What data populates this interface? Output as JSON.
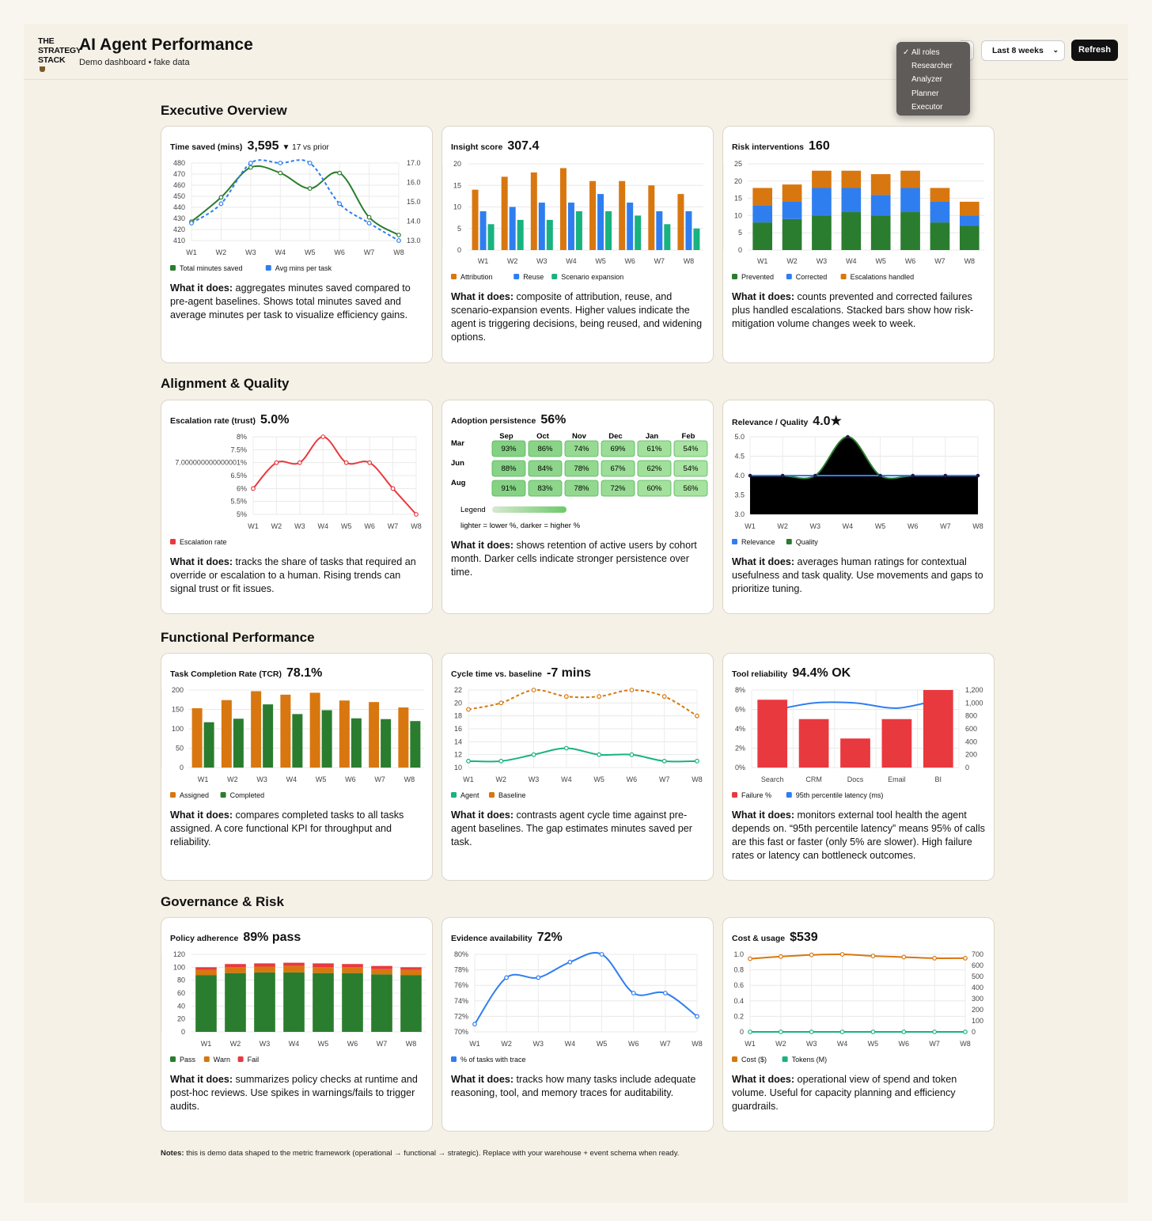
{
  "header": {
    "logo_lines": [
      "THE",
      "STRATEGY",
      "STACK"
    ],
    "title": "AI Agent Performance",
    "subtitle": "Demo dashboard • fake data"
  },
  "controls": {
    "roles": [
      "All roles",
      "Researcher",
      "Analyzer",
      "Planner",
      "Executor"
    ],
    "selected_role": "All roles",
    "period": "Last 8 weeks",
    "refresh": "Refresh"
  },
  "sections": {
    "exec": "Executive Overview",
    "align": "Alignment & Quality",
    "func": "Functional Performance",
    "gov": "Governance & Risk"
  },
  "weeks": [
    "W1",
    "W2",
    "W3",
    "W4",
    "W5",
    "W6",
    "W7",
    "W8"
  ],
  "colors": {
    "green": "#2a7d2e",
    "blue": "#2f7ef0",
    "orange": "#d8770f",
    "teal": "#18b37e",
    "red": "#e8393f",
    "yellow_orange": "#e07a10"
  },
  "cards": {
    "time_saved": {
      "label": "Time saved (mins)",
      "value": "3,595",
      "delta": "▼ 17 vs prior",
      "desc_bold": "What it does:",
      "desc": " aggregates minutes saved compared to pre-agent baselines. Shows total minutes saved and average minutes per task to visualize efficiency gains."
    },
    "insight": {
      "label": "Insight score",
      "value": "307.4",
      "desc_bold": "What it does:",
      "desc": " composite of attribution, reuse, and scenario-expansion events. Higher values indicate the agent is triggering decisions, being reused, and widening options."
    },
    "risk": {
      "label": "Risk interventions",
      "value": "160",
      "desc_bold": "What it does:",
      "desc": " counts prevented and corrected failures plus handled escalations. Stacked bars show how risk-mitigation volume changes week to week."
    },
    "escalation": {
      "label": "Escalation rate (trust)",
      "value": "5.0%",
      "desc_bold": "What it does:",
      "desc": " tracks the share of tasks that required an override or escalation to a human. Rising trends can signal trust or fit issues."
    },
    "adoption": {
      "label": "Adoption persistence",
      "value": "56%",
      "desc_bold": "What it does:",
      "desc": " shows retention of active users by cohort month. Darker cells indicate stronger persistence over time."
    },
    "relevance": {
      "label": "Relevance / Quality",
      "value": "4.0★",
      "desc_bold": "What it does:",
      "desc": " averages human ratings for contextual usefulness and task quality. Use movements and gaps to prioritize tuning."
    },
    "tcr": {
      "label": "Task Completion Rate (TCR)",
      "value": "78.1%",
      "desc_bold": "What it does:",
      "desc": " compares completed tasks to all tasks assigned. A core functional KPI for throughput and reliability."
    },
    "cycle": {
      "label": "Cycle time vs. baseline",
      "value": "-7 mins",
      "desc_bold": "What it does:",
      "desc": " contrasts agent cycle time against pre-agent baselines. The gap estimates minutes saved per task."
    },
    "tool": {
      "label": "Tool reliability",
      "value": "94.4% OK",
      "desc_bold": "What it does:",
      "desc": " monitors external tool health the agent depends on. “95th percentile latency” means 95% of calls are this fast or faster (only 5% are slower). High failure rates or latency can bottleneck outcomes."
    },
    "policy": {
      "label": "Policy adherence",
      "value": "89% pass",
      "desc_bold": "What it does:",
      "desc": " summarizes policy checks at runtime and post-hoc reviews. Use spikes in warnings/fails to trigger audits."
    },
    "evidence": {
      "label": "Evidence availability",
      "value": "72%",
      "desc_bold": "What it does:",
      "desc": " tracks how many tasks include adequate reasoning, tool, and memory traces for auditability."
    },
    "cost": {
      "label": "Cost & usage",
      "value": "$539",
      "desc_bold": "What it does:",
      "desc": " operational view of spend and token volume. Useful for capacity planning and efficiency guardrails."
    }
  },
  "chart_data": [
    {
      "id": "time_saved",
      "type": "line",
      "x": [
        "W1",
        "W2",
        "W3",
        "W4",
        "W5",
        "W6",
        "W7",
        "W8"
      ],
      "series": [
        {
          "name": "Total minutes saved",
          "axis": "left",
          "values": [
            427,
            449,
            476,
            471,
            457,
            471,
            431,
            415
          ]
        },
        {
          "name": "Avg mins per task",
          "axis": "right",
          "values": [
            13.9,
            14.9,
            17.0,
            17.0,
            17.0,
            14.9,
            13.9,
            13.0
          ]
        }
      ],
      "ylim_left": [
        410,
        480
      ],
      "yticks_left": [
        "410",
        "420",
        "430",
        "440",
        "450",
        "460",
        "470",
        "480"
      ],
      "ylim_right": [
        13,
        17
      ],
      "yticks_right": [
        "13.0",
        "14.0",
        "15.0",
        "16.0",
        "17.0"
      ]
    },
    {
      "id": "insight",
      "type": "bar",
      "x": [
        "W1",
        "W2",
        "W3",
        "W4",
        "W5",
        "W6",
        "W7",
        "W8"
      ],
      "series": [
        {
          "name": "Attribution",
          "values": [
            14,
            17,
            18,
            19,
            16,
            16,
            15,
            13
          ]
        },
        {
          "name": "Reuse",
          "values": [
            9,
            10,
            11,
            11,
            13,
            11,
            9,
            9
          ]
        },
        {
          "name": "Scenario expansion",
          "values": [
            6,
            7,
            7,
            9,
            9,
            8,
            6,
            5
          ]
        }
      ],
      "ylim": [
        0,
        20
      ],
      "yticks": [
        "0",
        "5",
        "10",
        "15",
        "20"
      ]
    },
    {
      "id": "risk",
      "type": "stacked-bar",
      "x": [
        "W1",
        "W2",
        "W3",
        "W4",
        "W5",
        "W6",
        "W7",
        "W8"
      ],
      "series": [
        {
          "name": "Prevented",
          "values": [
            8,
            9,
            10,
            11,
            10,
            11,
            8,
            7
          ]
        },
        {
          "name": "Corrected",
          "values": [
            5,
            5,
            8,
            7,
            6,
            7,
            6,
            3
          ]
        },
        {
          "name": "Escalations handled",
          "values": [
            5,
            5,
            5,
            5,
            6,
            5,
            4,
            4
          ]
        }
      ],
      "ylim": [
        0,
        25
      ],
      "yticks": [
        "0",
        "5",
        "10",
        "15",
        "20",
        "25"
      ]
    },
    {
      "id": "escalation",
      "type": "line",
      "x": [
        "W1",
        "W2",
        "W3",
        "W4",
        "W5",
        "W6",
        "W7",
        "W8"
      ],
      "series": [
        {
          "name": "Escalation rate",
          "values": [
            6,
            7,
            7,
            8,
            7,
            7,
            6,
            5
          ]
        }
      ],
      "ylim": [
        5,
        8
      ],
      "yticks": [
        "5%",
        "5.5%",
        "6%",
        "6.5%",
        "7.000000000000001%",
        "7.5%",
        "8%"
      ]
    },
    {
      "id": "adoption",
      "type": "heatmap",
      "columns": [
        "Sep",
        "Oct",
        "Nov",
        "Dec",
        "Jan",
        "Feb"
      ],
      "rows": [
        "Mar",
        "Jun",
        "Aug"
      ],
      "values": [
        [
          "93%",
          "86%",
          "74%",
          "69%",
          "61%",
          "54%"
        ],
        [
          "88%",
          "84%",
          "78%",
          "67%",
          "62%",
          "54%"
        ],
        [
          "91%",
          "83%",
          "78%",
          "72%",
          "60%",
          "56%"
        ]
      ],
      "legend_title": "Legend",
      "legend_note": "lighter = lower %, darker = higher %"
    },
    {
      "id": "relevance",
      "type": "area",
      "x": [
        "W1",
        "W2",
        "W3",
        "W4",
        "W5",
        "W6",
        "W7",
        "W8"
      ],
      "series": [
        {
          "name": "Relevance",
          "values": [
            4.0,
            4.0,
            4.0,
            4.0,
            4.0,
            4.0,
            4.0,
            4.0
          ]
        },
        {
          "name": "Quality",
          "values": [
            4.0,
            4.0,
            4.0,
            5.0,
            4.0,
            4.0,
            4.0,
            4.0
          ]
        }
      ],
      "ylim": [
        3,
        5
      ],
      "yticks": [
        "3.0",
        "3.5",
        "4.0",
        "4.5",
        "5.0"
      ]
    },
    {
      "id": "tcr",
      "type": "bar",
      "x": [
        "W1",
        "W2",
        "W3",
        "W4",
        "W5",
        "W6",
        "W7",
        "W8"
      ],
      "series": [
        {
          "name": "Assigned",
          "values": [
            153,
            174,
            197,
            188,
            193,
            173,
            169,
            155
          ]
        },
        {
          "name": "Completed",
          "values": [
            117,
            126,
            163,
            138,
            148,
            127,
            125,
            120
          ]
        }
      ],
      "ylim": [
        0,
        200
      ],
      "yticks": [
        "0",
        "50",
        "100",
        "150",
        "200"
      ]
    },
    {
      "id": "cycle",
      "type": "line",
      "x": [
        "W1",
        "W2",
        "W3",
        "W4",
        "W5",
        "W6",
        "W7",
        "W8"
      ],
      "series": [
        {
          "name": "Agent",
          "values": [
            11,
            11,
            12,
            13,
            12,
            12,
            11,
            11
          ]
        },
        {
          "name": "Baseline",
          "values": [
            19,
            20,
            22,
            21,
            21,
            22,
            21,
            18
          ]
        }
      ],
      "ylim": [
        10,
        22
      ],
      "yticks": [
        "10",
        "12",
        "14",
        "16",
        "18",
        "20",
        "22"
      ]
    },
    {
      "id": "tool",
      "type": "bar+line",
      "x": [
        "Search",
        "CRM",
        "Docs",
        "Email",
        "BI"
      ],
      "series": [
        {
          "name": "Failure %",
          "axis": "left",
          "values": [
            7,
            5,
            3,
            5,
            8
          ]
        },
        {
          "name": "95th percentile latency (ms)",
          "axis": "right",
          "values": [
            880,
            1000,
            1000,
            920,
            1050
          ]
        }
      ],
      "ylim_left": [
        0,
        8
      ],
      "yticks_left": [
        "0%",
        "2%",
        "4%",
        "6%",
        "8%"
      ],
      "ylim_right": [
        0,
        1200
      ],
      "yticks_right": [
        "0",
        "200",
        "400",
        "600",
        "800",
        "1,000",
        "1,200"
      ]
    },
    {
      "id": "policy",
      "type": "stacked-bar",
      "x": [
        "W1",
        "W2",
        "W3",
        "W4",
        "W5",
        "W6",
        "W7",
        "W8"
      ],
      "series": [
        {
          "name": "Pass",
          "values": [
            88,
            91,
            92,
            92,
            91,
            91,
            89,
            88
          ]
        },
        {
          "name": "Warn",
          "values": [
            8,
            9,
            9,
            10,
            9,
            9,
            8,
            8
          ]
        },
        {
          "name": "Fail",
          "values": [
            4,
            5,
            5,
            5,
            6,
            5,
            5,
            4
          ]
        }
      ],
      "ylim": [
        0,
        120
      ],
      "yticks": [
        "0",
        "20",
        "40",
        "60",
        "80",
        "100",
        "120"
      ]
    },
    {
      "id": "evidence",
      "type": "line",
      "x": [
        "W1",
        "W2",
        "W3",
        "W4",
        "W5",
        "W6",
        "W7",
        "W8"
      ],
      "series": [
        {
          "name": "% of tasks with trace",
          "values": [
            71,
            77,
            77,
            79,
            80,
            75,
            75,
            72
          ]
        }
      ],
      "ylim": [
        70,
        80
      ],
      "yticks": [
        "70%",
        "72%",
        "74%",
        "76%",
        "78%",
        "80%"
      ]
    },
    {
      "id": "cost",
      "type": "line",
      "x": [
        "W1",
        "W2",
        "W3",
        "W4",
        "W5",
        "W6",
        "W7",
        "W8"
      ],
      "series": [
        {
          "name": "Cost ($)",
          "axis": "right",
          "values": [
            660,
            680,
            695,
            700,
            685,
            675,
            665,
            665
          ]
        },
        {
          "name": "Tokens (M)",
          "axis": "left",
          "values": [
            0,
            0,
            0,
            0,
            0,
            0,
            0,
            0
          ]
        }
      ],
      "ylim_left": [
        0,
        1
      ],
      "yticks_left": [
        "0",
        "0.2",
        "0.4",
        "0.6",
        "0.8",
        "1.0"
      ],
      "ylim_right": [
        0,
        700
      ],
      "yticks_right": [
        "0",
        "100",
        "200",
        "300",
        "400",
        "500",
        "600",
        "700"
      ]
    }
  ],
  "notes": {
    "bold": "Notes:",
    "text": " this is demo data shaped to the metric framework (operational → functional → strategic). Replace with your warehouse + event schema when ready."
  }
}
